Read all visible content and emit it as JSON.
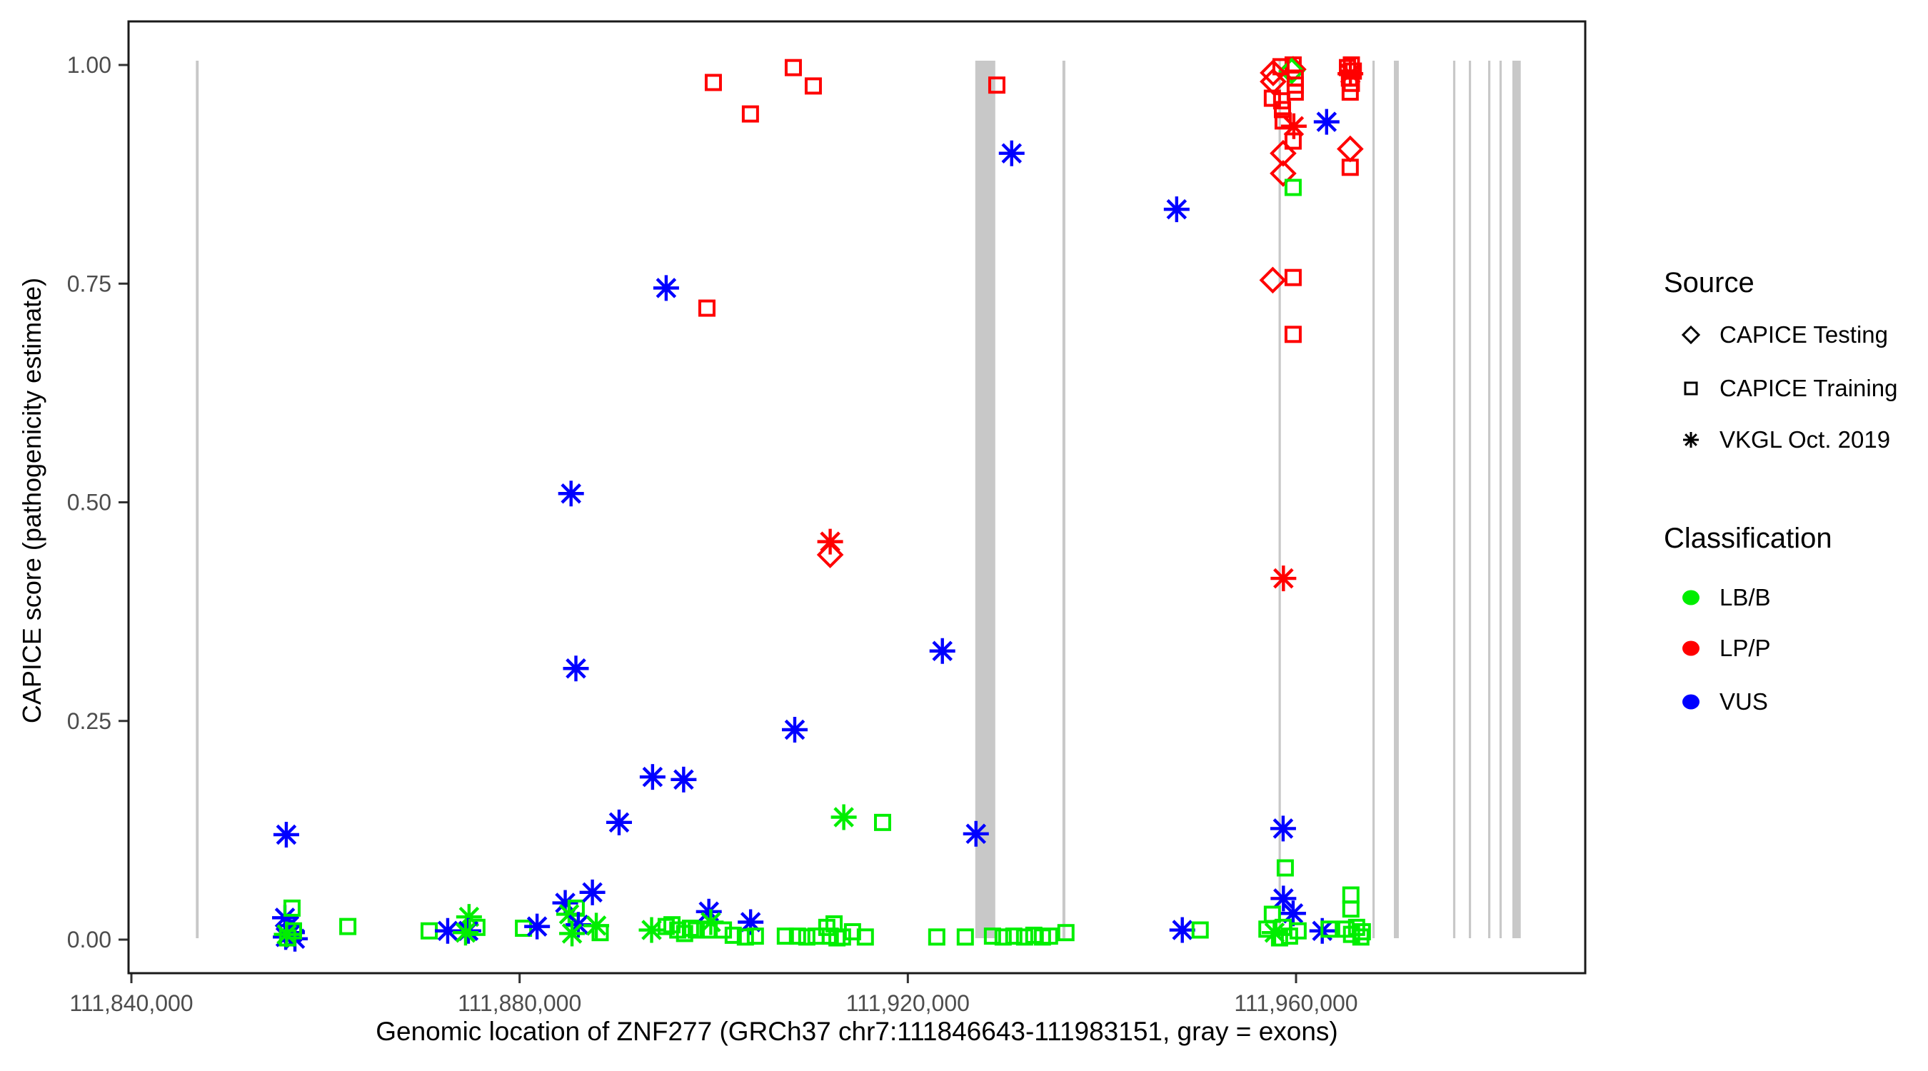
{
  "chart_data": {
    "type": "scatter",
    "title": "",
    "xlabel": "Genomic location of ZNF277 (GRCh37 chr7:111846643-111983151, gray = exons)",
    "ylabel": "CAPICE score (pathogenicity estimate)",
    "x_ticks": [
      {
        "value": 111840000,
        "label": "111,840,000"
      },
      {
        "value": 111880000,
        "label": "111,880,000"
      },
      {
        "value": 111920000,
        "label": "111,920,000"
      },
      {
        "value": 111960000,
        "label": "111,960,000"
      }
    ],
    "y_ticks": [
      {
        "value": 0.0,
        "label": "0.00"
      },
      {
        "value": 0.25,
        "label": "0.25"
      },
      {
        "value": 0.5,
        "label": "0.50"
      },
      {
        "value": 0.75,
        "label": "0.75"
      },
      {
        "value": 1.0,
        "label": "1.00"
      }
    ],
    "x_domain": [
      111839700,
      111989900
    ],
    "y_domain": [
      -0.04,
      1.05
    ],
    "grid": "off",
    "gene_region": {
      "name": "ZNF277",
      "assembly": "GRCh37",
      "chrom": "chr7",
      "start": 111846643,
      "end": 111983151
    },
    "exons_note": "gray vertical bands = exons",
    "exons": [
      {
        "start": 111846643,
        "end": 111846930
      },
      {
        "start": 111926950,
        "end": 111929010
      },
      {
        "start": 111935930,
        "end": 111936230
      },
      {
        "start": 111958200,
        "end": 111958430
      },
      {
        "start": 111967870,
        "end": 111968090
      },
      {
        "start": 111970080,
        "end": 111970590
      },
      {
        "start": 111976180,
        "end": 111976400
      },
      {
        "start": 111977800,
        "end": 111978020
      },
      {
        "start": 111979790,
        "end": 111980010
      },
      {
        "start": 111980960,
        "end": 111981180
      },
      {
        "start": 111982290,
        "end": 111983151
      }
    ],
    "point_columns": [
      "genomic_position",
      "capice_score",
      "source",
      "classification"
    ],
    "points": [
      [
        111855960,
        0.12,
        "vkgl",
        "vus"
      ],
      [
        111855820,
        0.025,
        "vkgl",
        "vus"
      ],
      [
        111856260,
        0.016,
        "vkgl",
        "vus"
      ],
      [
        111856550,
        0.008,
        "vkgl",
        "vus"
      ],
      [
        111855900,
        0.003,
        "vkgl",
        "vus"
      ],
      [
        111856850,
        0.001,
        "vkgl",
        "vus"
      ],
      [
        111856550,
        0.036,
        "training",
        "lb"
      ],
      [
        111856700,
        0.01,
        "training",
        "lb"
      ],
      [
        111856100,
        0.002,
        "training",
        "lb"
      ],
      [
        111856000,
        0.006,
        "vkgl",
        "lb"
      ],
      [
        111862300,
        0.015,
        "training",
        "lb"
      ],
      [
        111870680,
        0.01,
        "training",
        "lb"
      ],
      [
        111872590,
        0.01,
        "vkgl",
        "vus"
      ],
      [
        111874790,
        0.026,
        "vkgl",
        "lb"
      ],
      [
        111874720,
        0.01,
        "vkgl",
        "vus"
      ],
      [
        111874430,
        0.008,
        "vkgl",
        "lb"
      ],
      [
        111875600,
        0.014,
        "training",
        "lb"
      ],
      [
        111880400,
        0.013,
        "training",
        "lb"
      ],
      [
        111881800,
        0.015,
        "vkgl",
        "vus"
      ],
      [
        111884700,
        0.042,
        "vkgl",
        "vus"
      ],
      [
        111885830,
        0.036,
        "training",
        "lb"
      ],
      [
        111885100,
        0.029,
        "vkgl",
        "lb"
      ],
      [
        111886050,
        0.017,
        "vkgl",
        "vus"
      ],
      [
        111885400,
        0.007,
        "vkgl",
        "lb"
      ],
      [
        111887500,
        0.054,
        "vkgl",
        "vus"
      ],
      [
        111887900,
        0.016,
        "vkgl",
        "lb"
      ],
      [
        111888300,
        0.008,
        "training",
        "lb"
      ],
      [
        111885300,
        0.51,
        "vkgl",
        "vus"
      ],
      [
        111885800,
        0.31,
        "vkgl",
        "vus"
      ],
      [
        111890250,
        0.134,
        "vkgl",
        "vus"
      ],
      [
        111893700,
        0.186,
        "vkgl",
        "vus"
      ],
      [
        111896900,
        0.183,
        "vkgl",
        "vus"
      ],
      [
        111895100,
        0.745,
        "vkgl",
        "vus"
      ],
      [
        111908350,
        0.24,
        "vkgl",
        "vus"
      ],
      [
        111903800,
        0.02,
        "vkgl",
        "vus"
      ],
      [
        111923560,
        0.33,
        "vkgl",
        "vus"
      ],
      [
        111927020,
        0.121,
        "vkgl",
        "vus"
      ],
      [
        111930700,
        0.899,
        "vkgl",
        "vus"
      ],
      [
        111947700,
        0.835,
        "vkgl",
        "vus"
      ],
      [
        111893600,
        0.011,
        "vkgl",
        "lb"
      ],
      [
        111895100,
        0.015,
        "training",
        "lb"
      ],
      [
        111895700,
        0.017,
        "training",
        "lb"
      ],
      [
        111896300,
        0.011,
        "training",
        "lb"
      ],
      [
        111897000,
        0.007,
        "training",
        "lb"
      ],
      [
        111897600,
        0.013,
        "training",
        "lb"
      ],
      [
        111898200,
        0.011,
        "training",
        "lb"
      ],
      [
        111899500,
        0.032,
        "vkgl",
        "vus"
      ],
      [
        111899700,
        0.02,
        "vkgl",
        "lb"
      ],
      [
        111899400,
        0.011,
        "training",
        "lb"
      ],
      [
        111901000,
        0.011,
        "training",
        "lb"
      ],
      [
        111899960,
        0.98,
        "training",
        "lp"
      ],
      [
        111903780,
        0.944,
        "training",
        "lp"
      ],
      [
        111908200,
        0.997,
        "training",
        "lp"
      ],
      [
        111910260,
        0.976,
        "training",
        "lp"
      ],
      [
        111899300,
        0.722,
        "training",
        "lp"
      ],
      [
        111929170,
        0.977,
        "training",
        "lp"
      ],
      [
        111912000,
        0.455,
        "vkgl",
        "lp"
      ],
      [
        111912000,
        0.44,
        "testing",
        "lp"
      ],
      [
        111913400,
        0.14,
        "vkgl",
        "lb"
      ],
      [
        111917400,
        0.134,
        "training",
        "lb"
      ],
      [
        111902010,
        0.005,
        "training",
        "lb"
      ],
      [
        111903260,
        0.003,
        "training",
        "lb"
      ],
      [
        111904290,
        0.004,
        "training",
        "lb"
      ],
      [
        111907380,
        0.004,
        "training",
        "lb"
      ],
      [
        111908630,
        0.004,
        "training",
        "lb"
      ],
      [
        111909590,
        0.003,
        "training",
        "lb"
      ],
      [
        111910540,
        0.004,
        "training",
        "lb"
      ],
      [
        111911650,
        0.014,
        "training",
        "lb"
      ],
      [
        111912400,
        0.018,
        "training",
        "lb"
      ],
      [
        111912010,
        0.004,
        "training",
        "lb"
      ],
      [
        111912700,
        0.002,
        "training",
        "lb"
      ],
      [
        111913270,
        0.003,
        "training",
        "lb"
      ],
      [
        111914300,
        0.009,
        "training",
        "lb"
      ],
      [
        111915620,
        0.003,
        "training",
        "lb"
      ],
      [
        111922980,
        0.003,
        "training",
        "lb"
      ],
      [
        111925920,
        0.003,
        "training",
        "lb"
      ],
      [
        111928720,
        0.004,
        "training",
        "lb"
      ],
      [
        111929820,
        0.003,
        "training",
        "lb"
      ],
      [
        111930920,
        0.004,
        "training",
        "lb"
      ],
      [
        111932030,
        0.003,
        "training",
        "lb"
      ],
      [
        111932980,
        0.005,
        "training",
        "lb"
      ],
      [
        111933870,
        0.003,
        "training",
        "lb"
      ],
      [
        111934600,
        0.004,
        "training",
        "lb"
      ],
      [
        111936290,
        0.008,
        "training",
        "lb"
      ],
      [
        111948280,
        0.011,
        "vkgl",
        "vus"
      ],
      [
        111950120,
        0.011,
        "training",
        "lb"
      ],
      [
        111959700,
        1.0,
        "training",
        "lp"
      ],
      [
        111959700,
        0.995,
        "testing",
        "lp"
      ],
      [
        111959550,
        0.993,
        "testing",
        "lb"
      ],
      [
        111958450,
        0.998,
        "training",
        "lp"
      ],
      [
        111957640,
        0.991,
        "testing",
        "lp"
      ],
      [
        111957640,
        0.981,
        "testing",
        "lp"
      ],
      [
        111959920,
        0.985,
        "training",
        "lp"
      ],
      [
        111959920,
        0.977,
        "training",
        "lp"
      ],
      [
        111959920,
        0.969,
        "training",
        "lp"
      ],
      [
        111957560,
        0.962,
        "training",
        "lp"
      ],
      [
        111958520,
        0.959,
        "training",
        "lp"
      ],
      [
        111958600,
        0.949,
        "training",
        "lp"
      ],
      [
        111958670,
        0.936,
        "training",
        "lp"
      ],
      [
        111959770,
        0.93,
        "vkgl",
        "lp"
      ],
      [
        111963150,
        0.935,
        "vkgl",
        "vus"
      ],
      [
        111959700,
        0.913,
        "training",
        "lp"
      ],
      [
        111958670,
        0.899,
        "testing",
        "lp"
      ],
      [
        111958670,
        0.876,
        "testing",
        "lp"
      ],
      [
        111959700,
        0.86,
        "training",
        "lb"
      ],
      [
        111957600,
        0.754,
        "testing",
        "lp"
      ],
      [
        111959700,
        0.757,
        "training",
        "lp"
      ],
      [
        111959700,
        0.692,
        "training",
        "lp"
      ],
      [
        111958700,
        0.413,
        "vkgl",
        "lp"
      ],
      [
        111958670,
        0.127,
        "vkgl",
        "vus"
      ],
      [
        111958890,
        0.082,
        "training",
        "lb"
      ],
      [
        111958700,
        0.047,
        "vkgl",
        "vus"
      ],
      [
        111959700,
        0.03,
        "vkgl",
        "vus"
      ],
      [
        111957560,
        0.029,
        "training",
        "lb"
      ],
      [
        111957000,
        0.012,
        "training",
        "lb"
      ],
      [
        111957790,
        0.008,
        "vkgl",
        "lb"
      ],
      [
        111958300,
        0.002,
        "training",
        "lb"
      ],
      [
        111958670,
        0.014,
        "training",
        "lb"
      ],
      [
        111959330,
        0.004,
        "training",
        "lb"
      ],
      [
        111960210,
        0.01,
        "training",
        "lb"
      ],
      [
        111962700,
        0.01,
        "vkgl",
        "vus"
      ],
      [
        111963400,
        0.012,
        "training",
        "lb"
      ],
      [
        111965700,
        1.0,
        "training",
        "lp"
      ],
      [
        111965300,
        0.997,
        "training",
        "lp"
      ],
      [
        111965900,
        0.993,
        "training",
        "lp"
      ],
      [
        111965500,
        0.985,
        "training",
        "lp"
      ],
      [
        111965700,
        0.979,
        "training",
        "lp"
      ],
      [
        111965600,
        0.99,
        "vkgl",
        "lp"
      ],
      [
        111965580,
        0.969,
        "training",
        "lp"
      ],
      [
        111965580,
        0.904,
        "testing",
        "lp"
      ],
      [
        111965580,
        0.883,
        "training",
        "lp"
      ],
      [
        111965650,
        0.051,
        "training",
        "lb"
      ],
      [
        111965650,
        0.035,
        "training",
        "lb"
      ],
      [
        111965140,
        0.012,
        "training",
        "lb"
      ],
      [
        111965720,
        0.006,
        "training",
        "lb"
      ],
      [
        111966240,
        0.014,
        "training",
        "lb"
      ],
      [
        111966680,
        0.003,
        "training",
        "lb"
      ],
      [
        111966830,
        0.009,
        "training",
        "lb"
      ]
    ]
  },
  "legend": {
    "source": {
      "title": "Source",
      "items": [
        {
          "id": "testing",
          "label": "CAPICE Testing",
          "symbol": "diamond-outline-icon"
        },
        {
          "id": "training",
          "label": "CAPICE Training",
          "symbol": "square-outline-icon"
        },
        {
          "id": "vkgl",
          "label": "VKGL Oct. 2019",
          "symbol": "asterisk-icon"
        }
      ]
    },
    "classification": {
      "title": "Classification",
      "items": [
        {
          "id": "lb",
          "label": "LB/B",
          "color": "#00EE00"
        },
        {
          "id": "lp",
          "label": "LP/P",
          "color": "#FF0000"
        },
        {
          "id": "vus",
          "label": "VUS",
          "color": "#0000FF"
        }
      ]
    }
  },
  "colors": {
    "lb": "#00EE00",
    "lp": "#FF0000",
    "vus": "#0000FF",
    "exon_gray": "#C8C8C8",
    "axis_text": "#4D4D4D",
    "panel_border": "#1A1A1A",
    "background": "#FFFFFF"
  }
}
